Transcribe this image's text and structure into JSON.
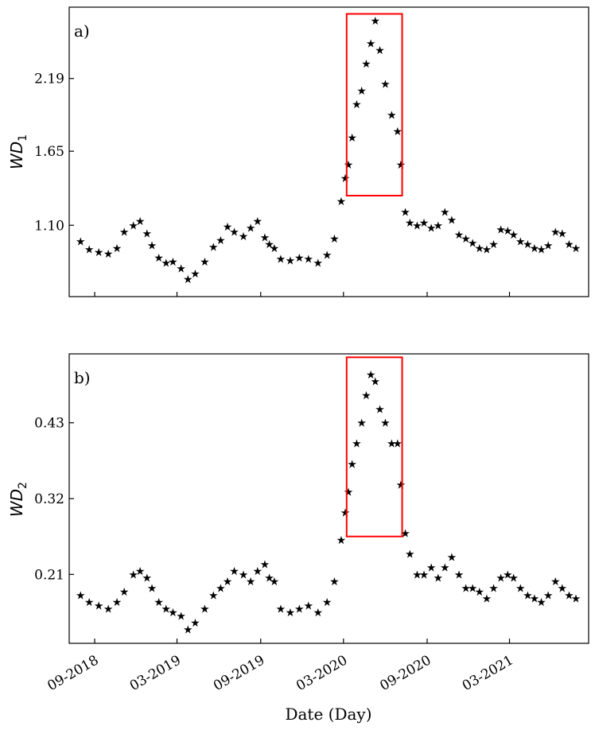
{
  "xlabel": "Date (Day)",
  "x_ticks": [
    "09-2018",
    "03-2019",
    "09-2019",
    "03-2020",
    "09-2020",
    "03-2021"
  ],
  "marker": "★",
  "colors": {
    "points": "#000000",
    "highlight": "#ff0000"
  },
  "chart_data": [
    {
      "type": "scatter",
      "panel_label": "a)",
      "ylabel": "WD",
      "ylabel_sub": "1",
      "yticks": [
        "1.10",
        "1.65",
        "2.19"
      ],
      "ylim": [
        0.57,
        2.72
      ],
      "xlim": [
        "2018-07-07",
        "2021-08-22"
      ],
      "highlight": {
        "x": [
          "2020-03-08",
          "2020-07-08"
        ],
        "y": [
          1.32,
          2.67
        ]
      },
      "series": [
        {
          "x": [
            "2018-08-01",
            "2018-08-20",
            "2018-09-10",
            "2018-10-01",
            "2018-10-20",
            "2018-11-05",
            "2018-11-25",
            "2018-12-10",
            "2018-12-25",
            "2019-01-05",
            "2019-01-20",
            "2019-02-05",
            "2019-02-20",
            "2019-03-10",
            "2019-03-25",
            "2019-04-10",
            "2019-05-01",
            "2019-05-20",
            "2019-06-05",
            "2019-06-20",
            "2019-07-05",
            "2019-07-25",
            "2019-08-10",
            "2019-08-25",
            "2019-09-10",
            "2019-09-20",
            "2019-10-01",
            "2019-10-15",
            "2019-11-05",
            "2019-11-25",
            "2019-12-15",
            "2020-01-05",
            "2020-01-25",
            "2020-02-10",
            "2020-02-25",
            "2020-03-05",
            "2020-03-12",
            "2020-03-20",
            "2020-03-30",
            "2020-04-10",
            "2020-04-20",
            "2020-04-30",
            "2020-05-10",
            "2020-05-20",
            "2020-06-01",
            "2020-06-15",
            "2020-06-28",
            "2020-07-05",
            "2020-07-15",
            "2020-07-25",
            "2020-08-10",
            "2020-08-25",
            "2020-09-10",
            "2020-09-25",
            "2020-10-10",
            "2020-10-25",
            "2020-11-10",
            "2020-11-25",
            "2020-12-10",
            "2020-12-25",
            "2021-01-10",
            "2021-01-25",
            "2021-02-10",
            "2021-02-25",
            "2021-03-10",
            "2021-03-25",
            "2021-04-10",
            "2021-04-25",
            "2021-05-10",
            "2021-05-25",
            "2021-06-10",
            "2021-06-25",
            "2021-07-10",
            "2021-07-25"
          ],
          "y": [
            0.98,
            0.92,
            0.9,
            0.89,
            0.93,
            1.05,
            1.1,
            1.13,
            1.04,
            0.95,
            0.86,
            0.82,
            0.83,
            0.78,
            0.7,
            0.74,
            0.83,
            0.94,
            0.99,
            1.09,
            1.05,
            1.02,
            1.08,
            1.13,
            1.01,
            0.96,
            0.93,
            0.85,
            0.84,
            0.86,
            0.85,
            0.82,
            0.88,
            1.0,
            1.28,
            1.45,
            1.55,
            1.75,
            2.0,
            2.1,
            2.3,
            2.45,
            2.62,
            2.4,
            2.15,
            1.92,
            1.8,
            1.55,
            1.2,
            1.12,
            1.1,
            1.12,
            1.08,
            1.1,
            1.2,
            1.14,
            1.03,
            1.0,
            0.97,
            0.93,
            0.92,
            0.96,
            1.07,
            1.06,
            1.03,
            0.98,
            0.96,
            0.93,
            0.92,
            0.95,
            1.05,
            1.04,
            0.96,
            0.93
          ]
        }
      ]
    },
    {
      "type": "scatter",
      "panel_label": "b)",
      "ylabel": "WD",
      "ylabel_sub": "2",
      "yticks": [
        "0.21",
        "0.32",
        "0.43"
      ],
      "ylim": [
        0.11,
        0.53
      ],
      "xlim": [
        "2018-07-07",
        "2021-08-22"
      ],
      "highlight": {
        "x": [
          "2020-03-08",
          "2020-07-08"
        ],
        "y": [
          0.265,
          0.525
        ]
      },
      "series": [
        {
          "x": [
            "2018-08-01",
            "2018-08-20",
            "2018-09-10",
            "2018-10-01",
            "2018-10-20",
            "2018-11-05",
            "2018-11-25",
            "2018-12-10",
            "2018-12-25",
            "2019-01-05",
            "2019-01-20",
            "2019-02-05",
            "2019-02-20",
            "2019-03-10",
            "2019-03-25",
            "2019-04-10",
            "2019-05-01",
            "2019-05-20",
            "2019-06-05",
            "2019-06-20",
            "2019-07-05",
            "2019-07-25",
            "2019-08-10",
            "2019-08-25",
            "2019-09-10",
            "2019-09-20",
            "2019-10-01",
            "2019-10-15",
            "2019-11-05",
            "2019-11-25",
            "2019-12-15",
            "2020-01-05",
            "2020-01-25",
            "2020-02-10",
            "2020-02-25",
            "2020-03-05",
            "2020-03-12",
            "2020-03-20",
            "2020-03-30",
            "2020-04-10",
            "2020-04-20",
            "2020-04-30",
            "2020-05-10",
            "2020-05-20",
            "2020-06-01",
            "2020-06-15",
            "2020-06-28",
            "2020-07-05",
            "2020-07-15",
            "2020-07-25",
            "2020-08-10",
            "2020-08-25",
            "2020-09-10",
            "2020-09-25",
            "2020-10-10",
            "2020-10-25",
            "2020-11-10",
            "2020-11-25",
            "2020-12-10",
            "2020-12-25",
            "2021-01-10",
            "2021-01-25",
            "2021-02-10",
            "2021-02-25",
            "2021-03-10",
            "2021-03-25",
            "2021-04-10",
            "2021-04-25",
            "2021-05-10",
            "2021-05-25",
            "2021-06-10",
            "2021-06-25",
            "2021-07-10",
            "2021-07-25"
          ],
          "y": [
            0.18,
            0.17,
            0.165,
            0.16,
            0.17,
            0.185,
            0.21,
            0.215,
            0.205,
            0.19,
            0.17,
            0.16,
            0.155,
            0.15,
            0.13,
            0.14,
            0.16,
            0.18,
            0.19,
            0.2,
            0.215,
            0.21,
            0.2,
            0.215,
            0.225,
            0.205,
            0.2,
            0.16,
            0.155,
            0.16,
            0.165,
            0.155,
            0.17,
            0.2,
            0.26,
            0.3,
            0.33,
            0.37,
            0.4,
            0.43,
            0.47,
            0.5,
            0.49,
            0.45,
            0.43,
            0.4,
            0.4,
            0.34,
            0.27,
            0.24,
            0.21,
            0.21,
            0.22,
            0.205,
            0.22,
            0.235,
            0.21,
            0.19,
            0.19,
            0.185,
            0.175,
            0.19,
            0.205,
            0.21,
            0.205,
            0.19,
            0.18,
            0.175,
            0.17,
            0.18,
            0.2,
            0.19,
            0.18,
            0.175
          ]
        }
      ]
    }
  ]
}
